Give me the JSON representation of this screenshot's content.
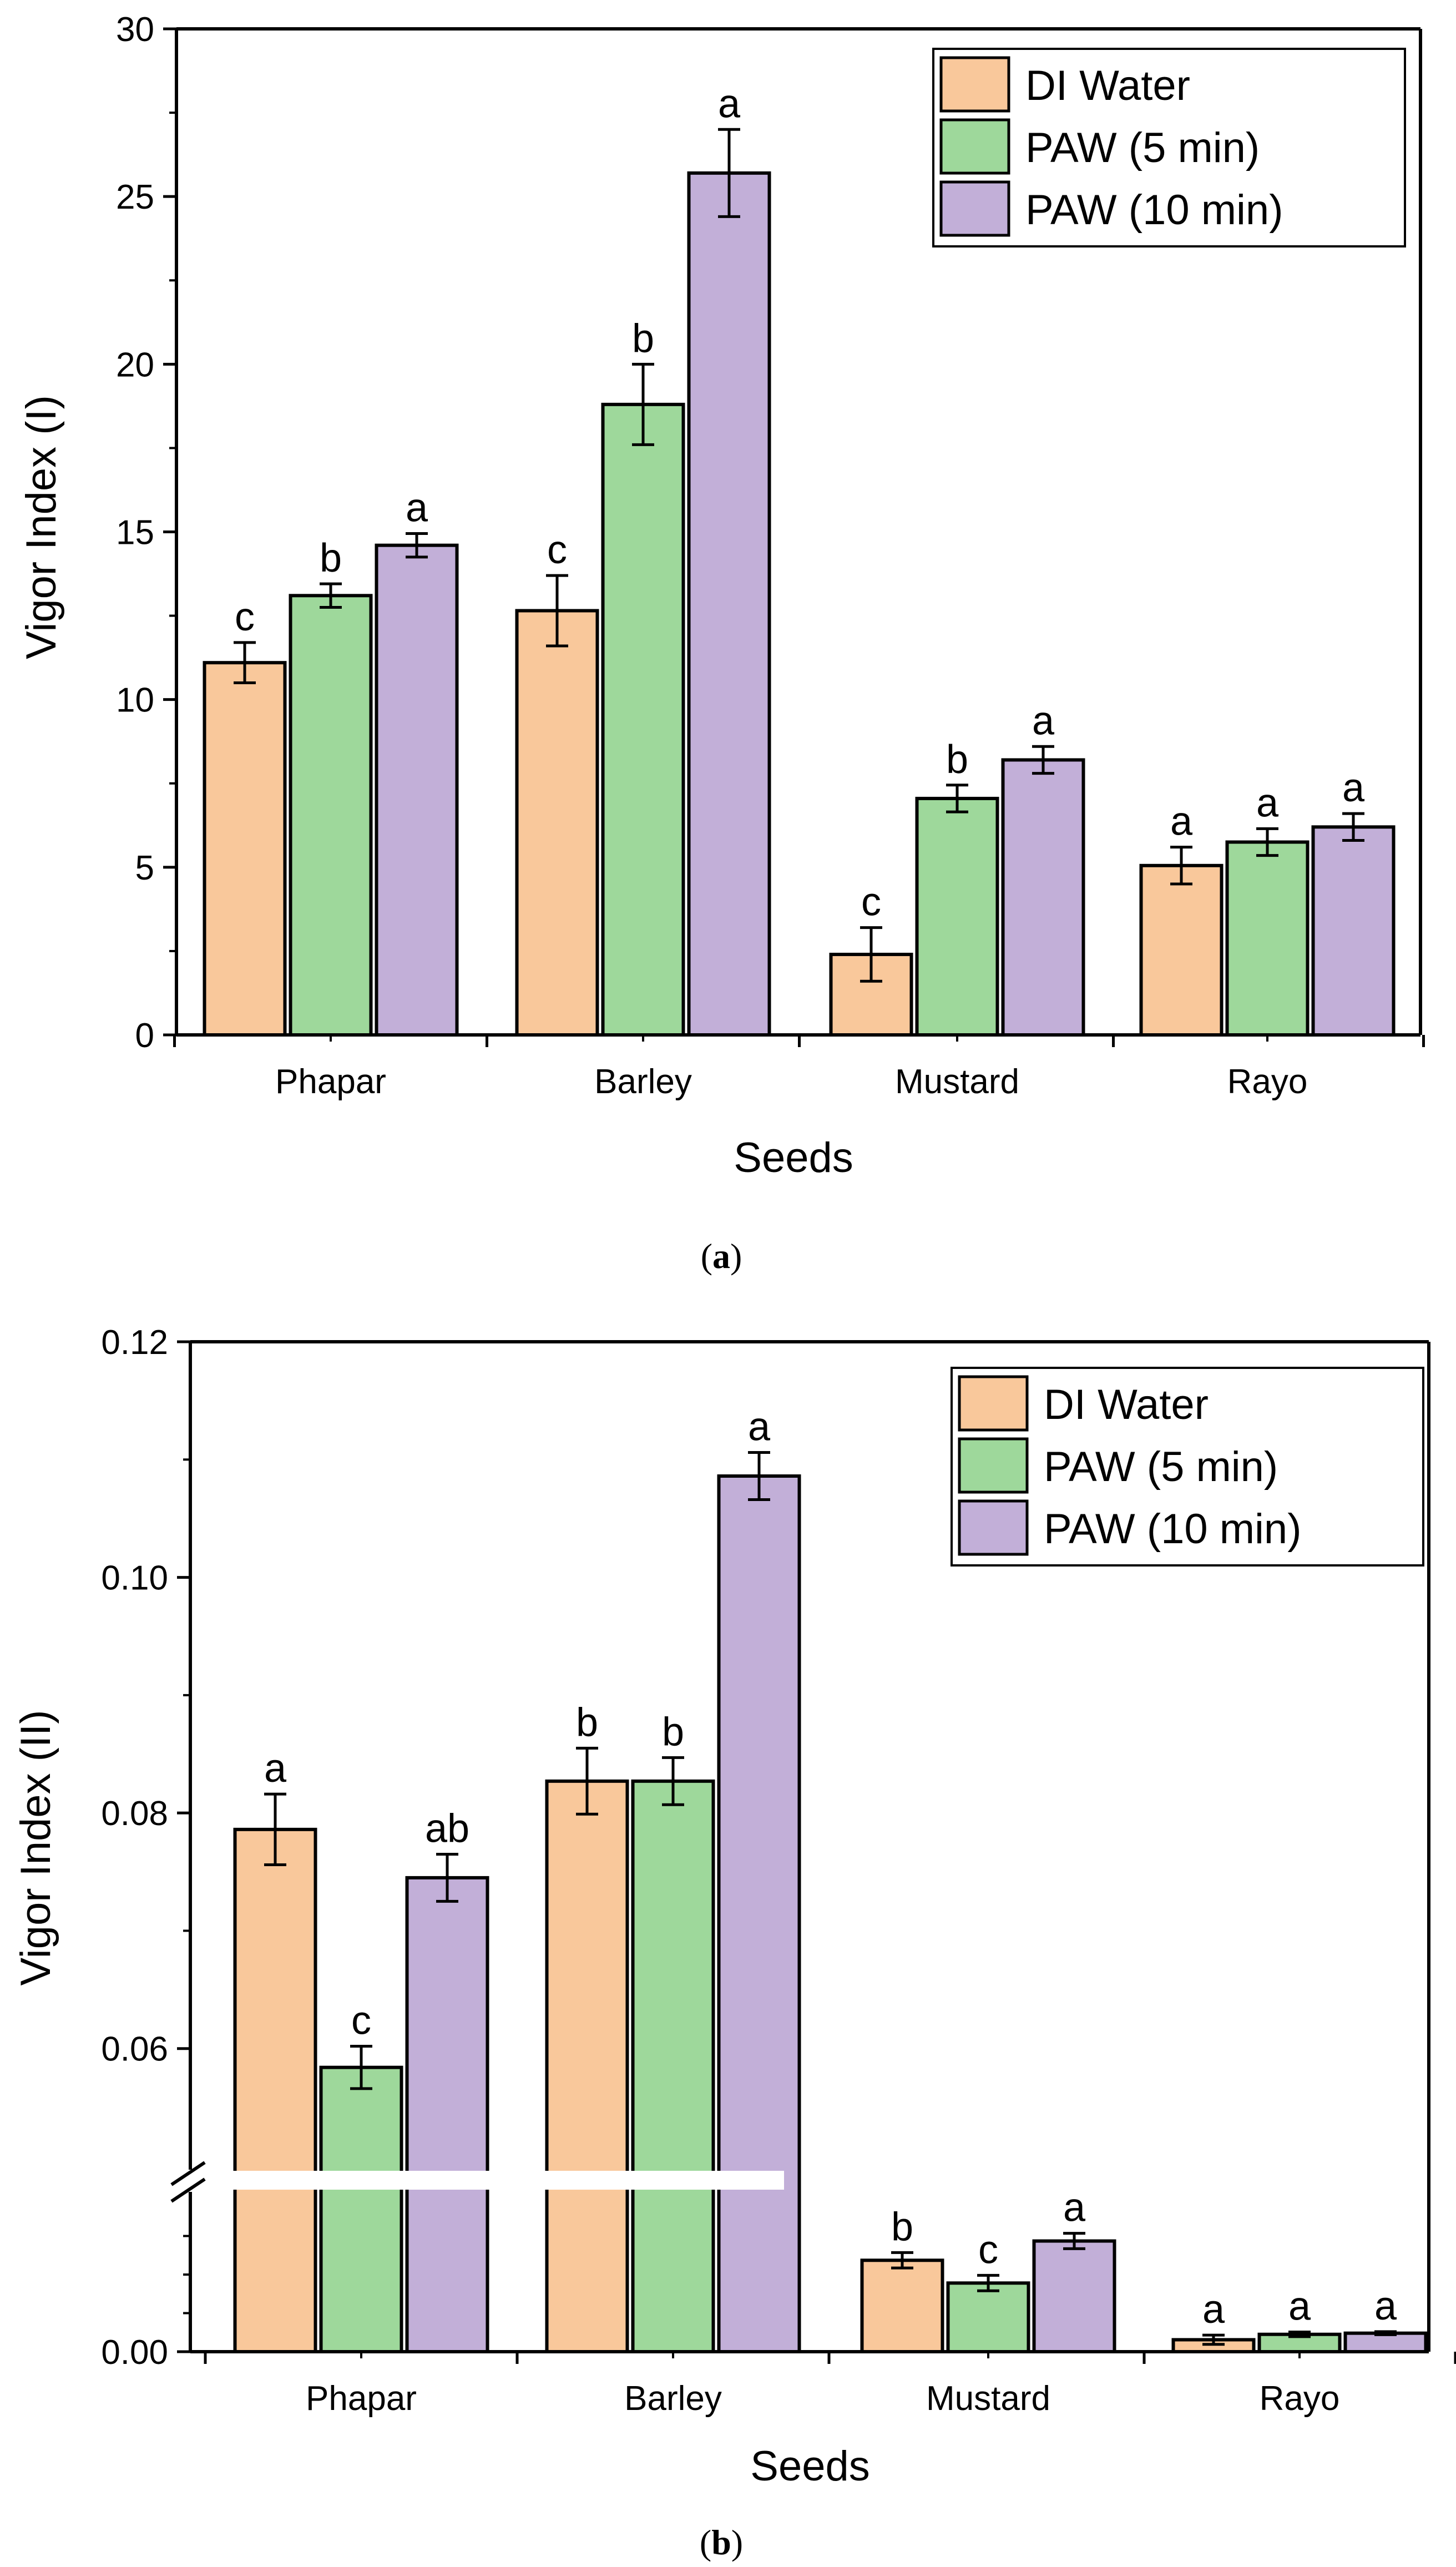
{
  "panels": [
    {
      "caption_letter": "a"
    },
    {
      "caption_letter": "b"
    }
  ],
  "chart_data": [
    {
      "type": "bar",
      "xlabel": "Seeds",
      "ylabel": "Vigor Index (I)",
      "ylim": [
        0,
        30
      ],
      "yticks": [
        "0",
        "5",
        "10",
        "15",
        "20",
        "25",
        "30"
      ],
      "categories": [
        "Phapar",
        "Barley",
        "Mustard",
        "Rayo"
      ],
      "legend_position": "top-right",
      "grid": false,
      "series": [
        {
          "name": "DI Water",
          "color": "#F9C89B",
          "values": [
            11.1,
            12.65,
            2.4,
            5.05
          ],
          "errors": [
            0.6,
            1.05,
            0.8,
            0.55
          ],
          "letters": [
            "c",
            "c",
            "c",
            "a"
          ]
        },
        {
          "name": "PAW (5 min)",
          "color": "#9ED89B",
          "values": [
            13.1,
            18.8,
            7.05,
            5.75
          ],
          "errors": [
            0.35,
            1.2,
            0.4,
            0.4
          ],
          "letters": [
            "b",
            "b",
            "b",
            "a"
          ]
        },
        {
          "name": "PAW (10 min)",
          "color": "#C2AFD8",
          "values": [
            14.6,
            25.7,
            8.2,
            6.2
          ],
          "errors": [
            0.35,
            1.3,
            0.4,
            0.4
          ],
          "letters": [
            "a",
            "a",
            "a",
            "a"
          ]
        }
      ]
    },
    {
      "type": "bar",
      "xlabel": "Seeds",
      "ylabel": "Vigor Index (II)",
      "ylim": [
        0,
        0.12
      ],
      "axis_break": true,
      "yticks": [
        "0.00",
        "0.06",
        "0.08",
        "0.10",
        "0.12"
      ],
      "categories": [
        "Phapar",
        "Barley",
        "Mustard",
        "Rayo"
      ],
      "legend_position": "top-right",
      "grid": false,
      "series": [
        {
          "name": "DI Water",
          "color": "#F9C89B",
          "values": [
            0.0786,
            0.0827,
            0.0237,
            0.0031
          ],
          "errors": [
            0.003,
            0.0028,
            0.002,
            0.0012
          ],
          "letters": [
            "a",
            "b",
            "b",
            "a"
          ]
        },
        {
          "name": "PAW (5 min)",
          "color": "#9ED89B",
          "values": [
            0.0584,
            0.0827,
            0.0178,
            0.0045
          ],
          "errors": [
            0.0018,
            0.002,
            0.002,
            0.0006
          ],
          "letters": [
            "c",
            "b",
            "c",
            "a"
          ]
        },
        {
          "name": "PAW (10 min)",
          "color": "#C2AFD8",
          "values": [
            0.0745,
            0.1086,
            0.0287,
            0.0048
          ],
          "errors": [
            0.002,
            0.002,
            0.002,
            0.0004
          ],
          "letters": [
            "ab",
            "a",
            "a",
            "a"
          ]
        }
      ]
    }
  ]
}
